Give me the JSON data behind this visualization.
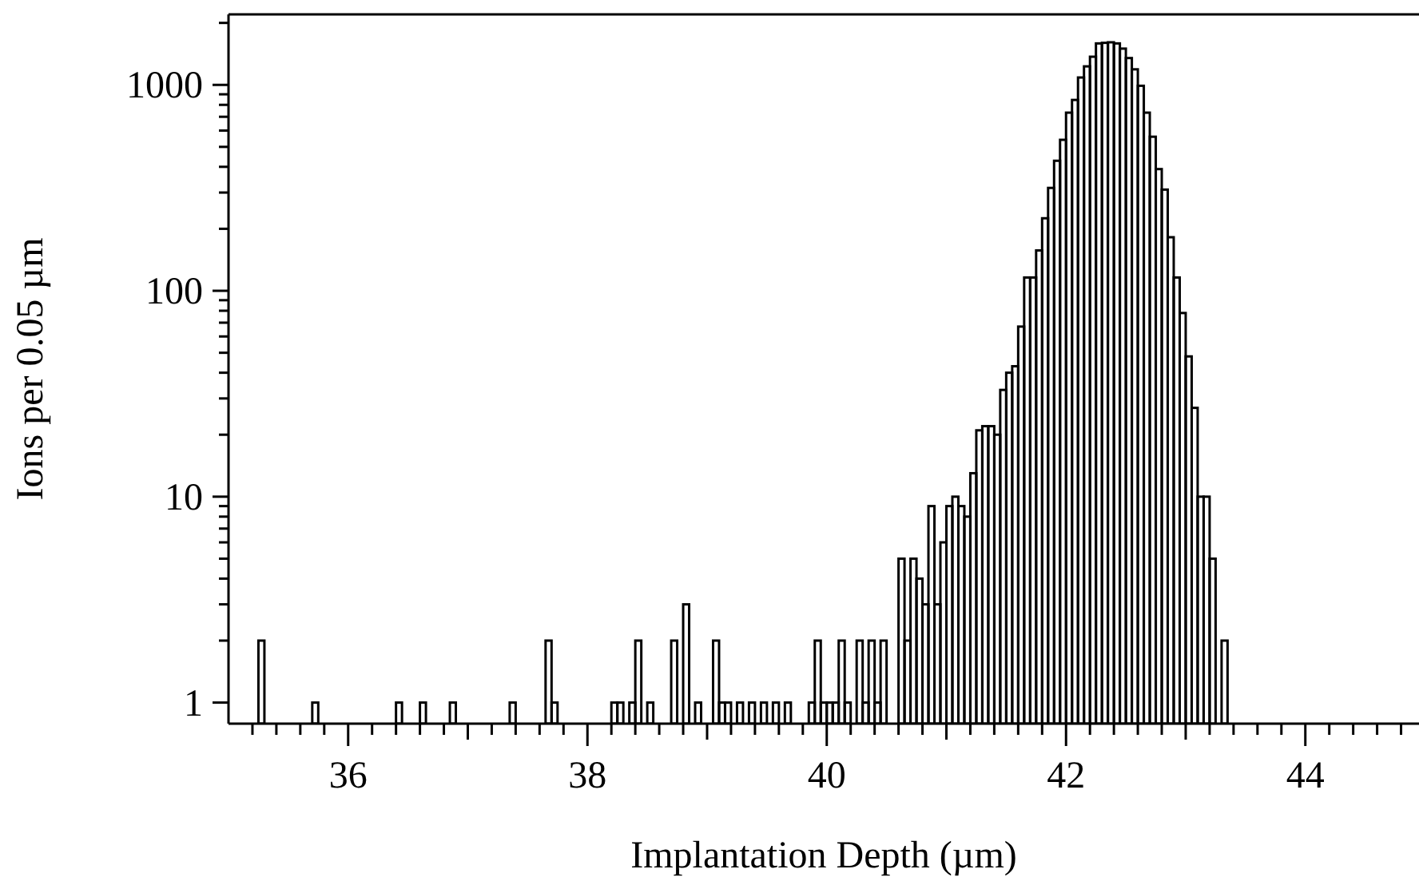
{
  "chart_data": {
    "type": "histogram",
    "xlabel": "Implantation Depth (µm)",
    "ylabel": "Ions per 0.05 µm",
    "color": "#000000",
    "bins": [
      35.2,
      35.25,
      35.3,
      35.35,
      35.4,
      35.45,
      35.5,
      35.55,
      35.6,
      35.65,
      35.7,
      35.75,
      35.8,
      35.85,
      35.9,
      35.95,
      36,
      36.05,
      36.1,
      36.15,
      36.2,
      36.25,
      36.3,
      36.35,
      36.4,
      36.45,
      36.5,
      36.55,
      36.6,
      36.65,
      36.7,
      36.75,
      36.8,
      36.85,
      36.9,
      36.95,
      37,
      37.05,
      37.1,
      37.15,
      37.2,
      37.25,
      37.3,
      37.35,
      37.4,
      37.45,
      37.5,
      37.55,
      37.6,
      37.65,
      37.7,
      37.75,
      37.8,
      37.85,
      37.9,
      37.95,
      38,
      38.05,
      38.1,
      38.15,
      38.2,
      38.25,
      38.3,
      38.35,
      38.4,
      38.45,
      38.5,
      38.55,
      38.6,
      38.65,
      38.7,
      38.75,
      38.8,
      38.85,
      38.9,
      38.95,
      39,
      39.05,
      39.1,
      39.15,
      39.2,
      39.25,
      39.3,
      39.35,
      39.4,
      39.45,
      39.5,
      39.55,
      39.6,
      39.65,
      39.7,
      39.75,
      39.8,
      39.85,
      39.9,
      39.95,
      40,
      40.05,
      40.1,
      40.15,
      40.2,
      40.25,
      40.3,
      40.35,
      40.4,
      40.45,
      40.5,
      40.55,
      40.6,
      40.65,
      40.7,
      40.75,
      40.8,
      40.85,
      40.9,
      40.95,
      41,
      41.05,
      41.1,
      41.15,
      41.2,
      41.25,
      41.3,
      41.35,
      41.4,
      41.45,
      41.5,
      41.55,
      41.6,
      41.65,
      41.7,
      41.75,
      41.8,
      41.85,
      41.9,
      41.95,
      42,
      42.05,
      42.1,
      42.15,
      42.2,
      42.25,
      42.3,
      42.35,
      42.4,
      42.45,
      42.5,
      42.55,
      42.6,
      42.65,
      42.7,
      42.75,
      42.8,
      42.85,
      42.9,
      42.95,
      43,
      43.05,
      43.1,
      43.15,
      43.2,
      43.25,
      43.3,
      43.35
    ],
    "values": [
      null,
      2,
      null,
      null,
      null,
      null,
      null,
      null,
      null,
      null,
      1,
      null,
      null,
      null,
      null,
      null,
      null,
      null,
      null,
      null,
      null,
      null,
      null,
      null,
      1,
      null,
      null,
      null,
      1,
      null,
      null,
      null,
      null,
      1,
      null,
      null,
      null,
      null,
      null,
      null,
      null,
      null,
      null,
      1,
      null,
      null,
      null,
      null,
      null,
      2,
      1,
      null,
      null,
      null,
      null,
      null,
      null,
      null,
      null,
      null,
      1,
      1,
      null,
      1,
      2,
      null,
      1,
      null,
      null,
      null,
      2,
      null,
      3,
      null,
      1,
      null,
      null,
      2,
      1,
      1,
      null,
      1,
      null,
      1,
      null,
      1,
      null,
      1,
      null,
      1,
      null,
      null,
      null,
      1,
      2,
      1,
      1,
      1,
      2,
      1,
      null,
      2,
      1,
      2,
      1,
      2,
      null,
      null,
      5,
      2,
      5,
      4,
      3,
      9,
      3,
      6,
      9,
      10,
      9,
      8,
      13,
      21,
      22,
      22,
      20,
      33,
      40,
      43,
      67,
      116,
      116,
      157,
      225,
      316,
      428,
      541,
      733,
      845,
      1086,
      1230,
      1370,
      1590,
      1600,
      1610,
      1590,
      1500,
      1350,
      1190,
      990,
      733,
      560,
      390,
      310,
      182,
      116,
      78,
      48,
      27,
      10,
      10,
      5,
      null,
      2
    ],
    "log": true,
    "xlim": [
      35,
      44.95
    ],
    "ylim": [
      0.79,
      2200
    ],
    "xticks": [
      {
        "value": 35.2,
        "label": null
      },
      {
        "value": 35.4,
        "label": null
      },
      {
        "value": 35.6,
        "label": null
      },
      {
        "value": 35.8,
        "label": null
      },
      36,
      {
        "value": 36.2,
        "label": null
      },
      {
        "value": 36.4,
        "label": null
      },
      {
        "value": 36.6,
        "label": null
      },
      {
        "value": 36.8,
        "label": null
      },
      {
        "value": 37,
        "label": null
      },
      {
        "value": 37.2,
        "label": null
      },
      {
        "value": 37.4,
        "label": null
      },
      {
        "value": 37.6,
        "label": null
      },
      {
        "value": 37.8,
        "label": null
      },
      38,
      {
        "value": 38.2,
        "label": null
      },
      {
        "value": 38.4,
        "label": null
      },
      {
        "value": 38.6,
        "label": null
      },
      {
        "value": 38.8,
        "label": null
      },
      {
        "value": 39,
        "label": null
      },
      {
        "value": 39.2,
        "label": null
      },
      {
        "value": 39.4,
        "label": null
      },
      {
        "value": 39.6,
        "label": null
      },
      {
        "value": 39.8,
        "label": null
      },
      40,
      {
        "value": 40.2,
        "label": null
      },
      {
        "value": 40.4,
        "label": null
      },
      {
        "value": 40.6,
        "label": null
      },
      {
        "value": 40.8,
        "label": null
      },
      {
        "value": 41,
        "label": null
      },
      {
        "value": 41.2,
        "label": null
      },
      {
        "value": 41.4,
        "label": null
      },
      {
        "value": 41.6,
        "label": null
      },
      {
        "value": 41.8,
        "label": null
      },
      42,
      {
        "value": 42.2,
        "label": null
      },
      {
        "value": 42.4,
        "label": null
      },
      {
        "value": 42.6,
        "label": null
      },
      {
        "value": 42.8,
        "label": null
      },
      {
        "value": 43,
        "label": null
      },
      {
        "value": 43.2,
        "label": null
      },
      {
        "value": 43.4,
        "label": null
      },
      {
        "value": 43.6,
        "label": null
      },
      {
        "value": 43.8,
        "label": null
      },
      44,
      {
        "value": 44.2,
        "label": null
      },
      {
        "value": 44.4,
        "label": null
      },
      {
        "value": 44.6,
        "label": null
      },
      {
        "value": 44.8,
        "label": null
      }
    ],
    "yticks": [
      1,
      {
        "value": 2,
        "label": null
      },
      {
        "value": 3,
        "label": null
      },
      {
        "value": 4,
        "label": null
      },
      {
        "value": 5,
        "label": null
      },
      {
        "value": 6,
        "label": null
      },
      {
        "value": 7,
        "label": null
      },
      {
        "value": 8,
        "label": null
      },
      {
        "value": 9,
        "label": null
      },
      10,
      {
        "value": 20,
        "label": null
      },
      {
        "value": 30,
        "label": null
      },
      {
        "value": 40,
        "label": null
      },
      {
        "value": 50,
        "label": null
      },
      {
        "value": 60,
        "label": null
      },
      {
        "value": 70,
        "label": null
      },
      {
        "value": 80,
        "label": null
      },
      {
        "value": 90,
        "label": null
      },
      100,
      {
        "value": 200,
        "label": null
      },
      {
        "value": 300,
        "label": null
      },
      {
        "value": 400,
        "label": null
      },
      {
        "value": 500,
        "label": null
      },
      {
        "value": 600,
        "label": null
      },
      {
        "value": 700,
        "label": null
      },
      {
        "value": 800,
        "label": null
      },
      {
        "value": 900,
        "label": null
      },
      1000,
      {
        "value": 2000,
        "label": null
      }
    ]
  }
}
